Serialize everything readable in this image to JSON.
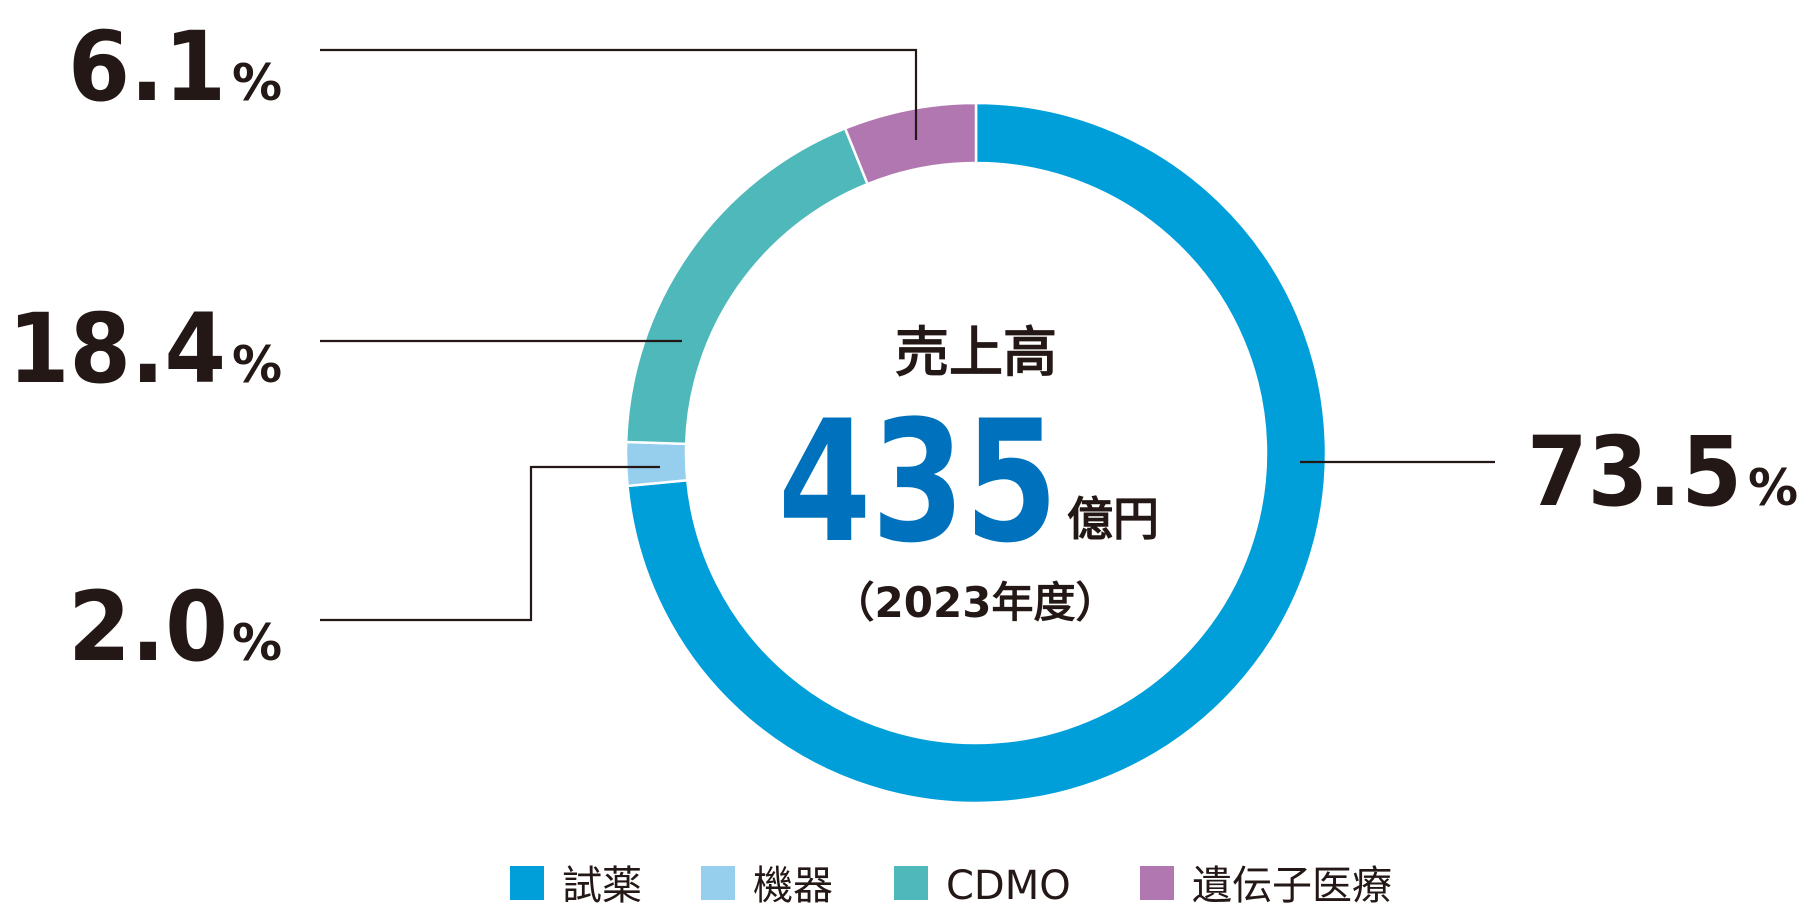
{
  "chart_data": {
    "type": "pie",
    "donut": true,
    "center": {
      "label": "売上高",
      "value": "435",
      "unit": "億円",
      "period": "（2023年度）"
    },
    "categories": [
      "試薬",
      "機器",
      "CDMO",
      "遺伝子医療"
    ],
    "values": [
      73.5,
      2.0,
      18.4,
      6.1
    ],
    "value_labels": [
      "73.5",
      "2.0",
      "18.4",
      "6.1"
    ],
    "value_unit": "%",
    "colors": [
      "#009fd9",
      "#96cfee",
      "#4fb8ba",
      "#b077b1"
    ],
    "legend_position": "bottom"
  }
}
